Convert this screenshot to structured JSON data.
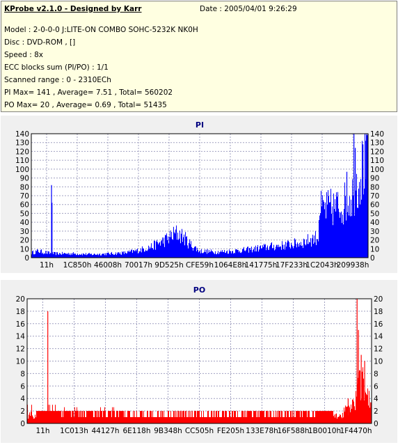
{
  "header": {
    "title": "KProbe v2.1.0 - Designed by Karr",
    "date": "Date : 2005/04/01 9:26:29",
    "model": "Model : 2-0-0-0 J:LITE-ON COMBO SOHC-5232K NK0H",
    "disc": "Disc : DVD-ROM ,  []",
    "speed": "Speed : 8x",
    "ecc": "ECC blocks sum (PI/PO) : 1/1",
    "range": "Scanned range : 0 - 2310ECh",
    "pi_stats": "PI Max= 141 , Average= 7.51 , Total= 560202",
    "po_stats": "PO Max= 20 , Average= 0.69 , Total= 51435"
  },
  "colors": {
    "pi": "#0000ff",
    "po": "#ff0000",
    "panel": "#f0f0f0",
    "info_bg": "#ffffe1"
  },
  "chart_data": [
    {
      "type": "bar",
      "title": "PI",
      "ylim": [
        0,
        140
      ],
      "yticks": [
        0,
        10,
        20,
        30,
        40,
        50,
        60,
        70,
        80,
        90,
        100,
        110,
        120,
        130,
        140
      ],
      "xticks": [
        "11h",
        "1C850h",
        "46008h",
        "70017h",
        "9D525h",
        "CFE59h",
        "1064E8h",
        "141775h",
        "17F233h",
        "1C2043h",
        "209938h"
      ],
      "x_range": [
        0,
        2314476
      ],
      "grid": true,
      "profile": [
        [
          0,
          6
        ],
        [
          0.02,
          8
        ],
        [
          0.06,
          5
        ],
        [
          0.12,
          5
        ],
        [
          0.18,
          4
        ],
        [
          0.24,
          5
        ],
        [
          0.28,
          6
        ],
        [
          0.32,
          9
        ],
        [
          0.36,
          14
        ],
        [
          0.4,
          22
        ],
        [
          0.43,
          30
        ],
        [
          0.45,
          26
        ],
        [
          0.47,
          17
        ],
        [
          0.5,
          8
        ],
        [
          0.55,
          7
        ],
        [
          0.6,
          8
        ],
        [
          0.65,
          10
        ],
        [
          0.7,
          13
        ],
        [
          0.75,
          15
        ],
        [
          0.8,
          18
        ],
        [
          0.83,
          22
        ],
        [
          0.85,
          25
        ],
        [
          0.8545,
          25
        ],
        [
          0.855,
          58
        ],
        [
          0.88,
          60
        ],
        [
          0.91,
          62
        ],
        [
          0.93,
          66
        ],
        [
          0.95,
          75
        ],
        [
          0.97,
          95
        ],
        [
          0.98,
          105
        ],
        [
          1.0,
          118
        ]
      ],
      "spikes": [
        [
          0.06,
          82
        ],
        [
          0.0615,
          62
        ],
        [
          0.937,
          97
        ],
        [
          0.958,
          140
        ],
        [
          0.962,
          124
        ],
        [
          0.985,
          128
        ],
        [
          0.992,
          132
        ]
      ]
    },
    {
      "type": "bar",
      "title": "PO",
      "ylim": [
        0,
        20
      ],
      "yticks": [
        0,
        2,
        4,
        6,
        8,
        10,
        12,
        14,
        16,
        18,
        20
      ],
      "xticks": [
        "11h",
        "1C013h",
        "44127h",
        "6E118h",
        "9B348h",
        "CC505h",
        "FE205h",
        "133E78h",
        "16F588h",
        "1B0010h",
        "1F4470h"
      ],
      "x_range": [
        0,
        2314476
      ],
      "grid": true,
      "profile": [
        [
          0,
          1.4
        ],
        [
          0.05,
          1.2
        ],
        [
          0.15,
          1.0
        ],
        [
          0.3,
          0.8
        ],
        [
          0.5,
          0.7
        ],
        [
          0.65,
          0.8
        ],
        [
          0.8,
          1.0
        ],
        [
          0.88,
          1.2
        ],
        [
          0.915,
          1.6
        ],
        [
          0.93,
          2.3
        ],
        [
          0.95,
          3.5
        ],
        [
          0.963,
          6
        ],
        [
          0.975,
          7
        ],
        [
          0.985,
          5
        ],
        [
          1.0,
          3
        ]
      ],
      "spikes": [
        [
          0.06,
          18
        ],
        [
          0.932,
          4
        ],
        [
          0.958,
          20
        ],
        [
          0.962,
          15
        ],
        [
          0.97,
          11
        ],
        [
          0.98,
          10
        ]
      ]
    }
  ]
}
